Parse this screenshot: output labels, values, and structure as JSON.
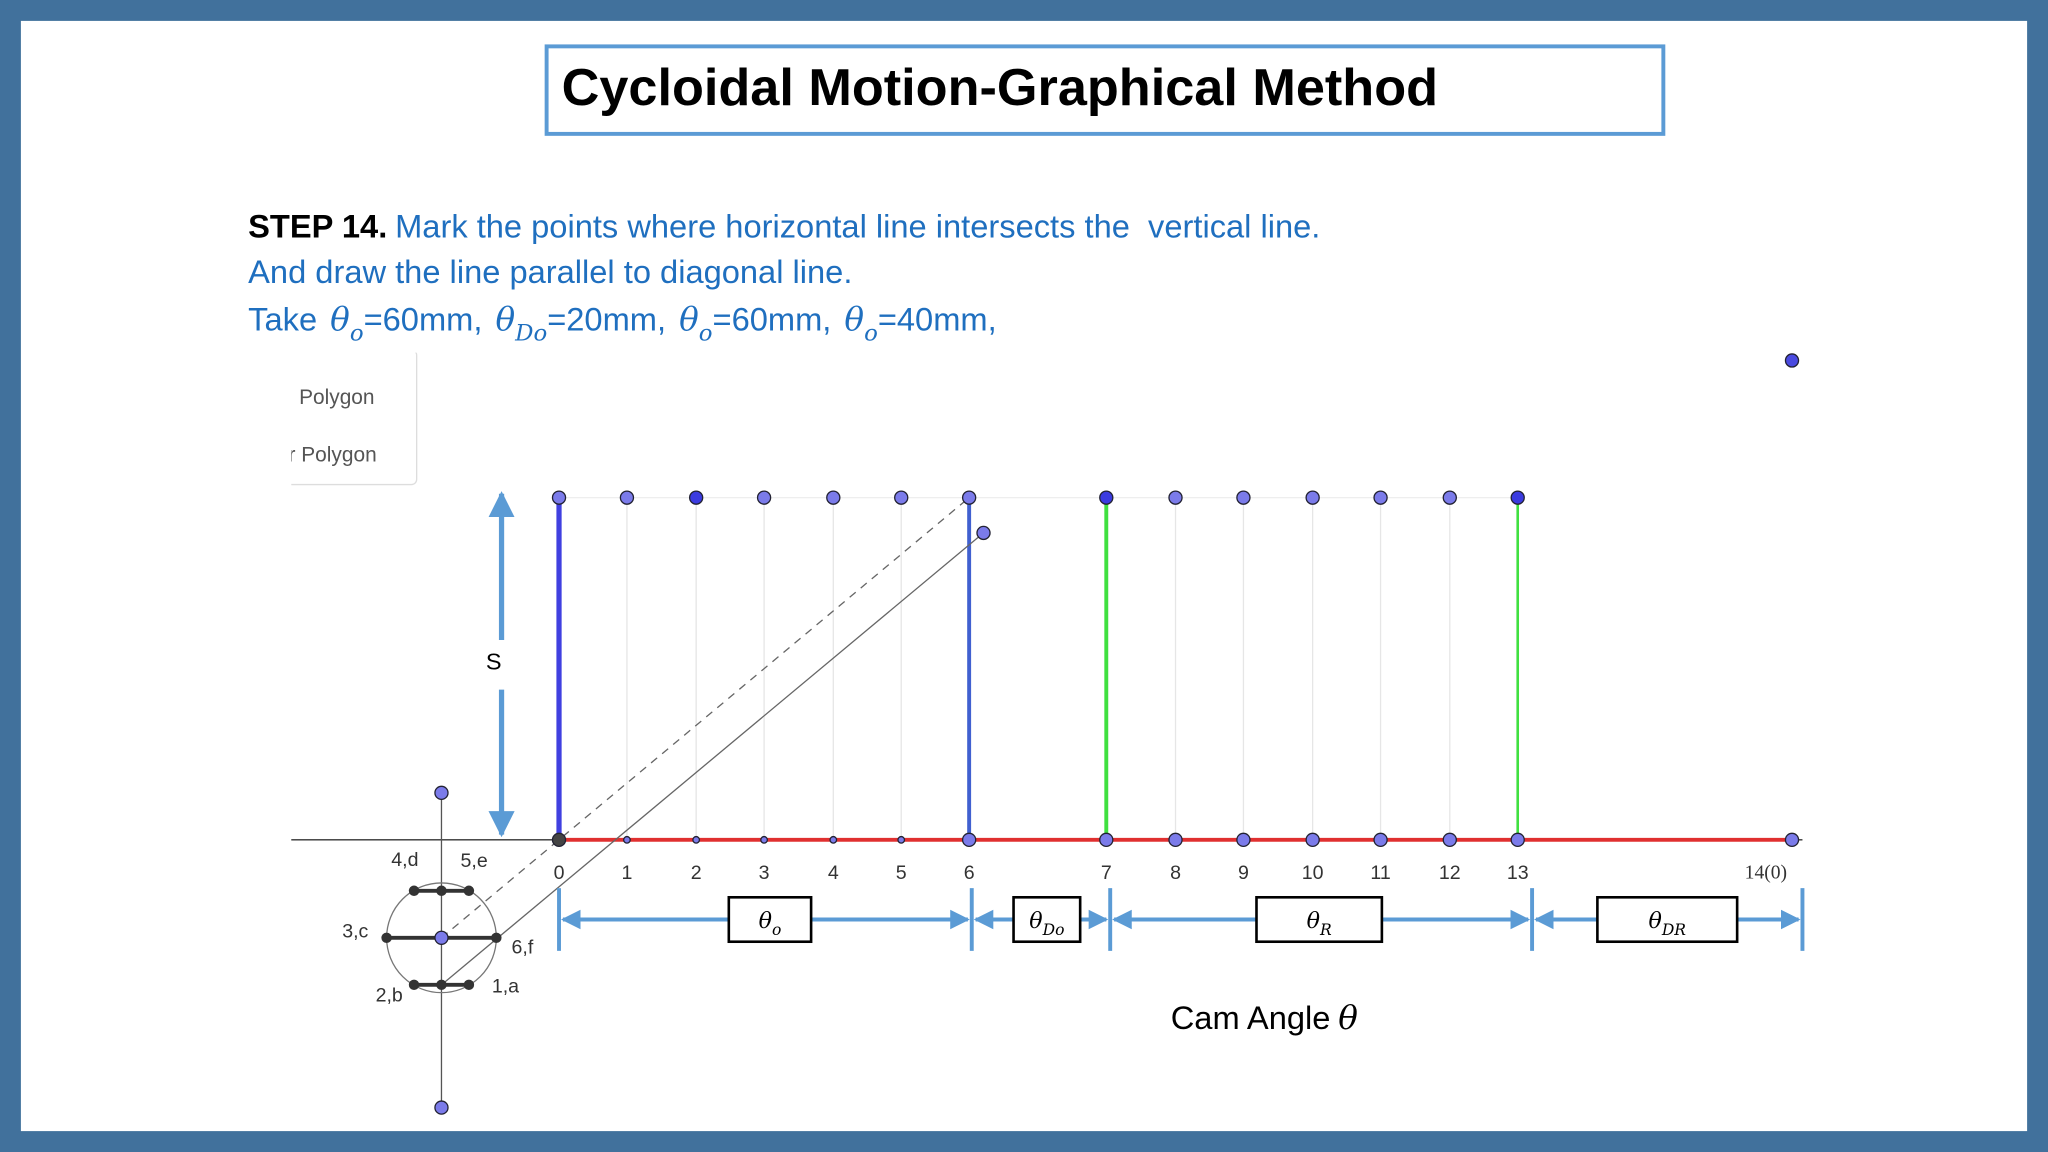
{
  "title": "Cycloidal Motion-Graphical Method",
  "step": {
    "label": "STEP 14.",
    "line1": "Mark the points where horizontal line intersects the  vertical line.",
    "line2": "And draw the line parallel to diagonal line.",
    "line3_lead": "Take",
    "line3_terms": [
      {
        "symbol": "θ",
        "sub": "o",
        "text": "=60mm,"
      },
      {
        "symbol": "θ",
        "sub": "Do",
        "text": "=20mm,"
      },
      {
        "symbol": "θ",
        "sub": "o",
        "text": "=60mm,"
      },
      {
        "symbol": "θ",
        "sub": "o",
        "text": "=40mm,"
      }
    ]
  },
  "menu": {
    "items": [
      "Polygon",
      "or Polygon"
    ]
  },
  "diagram": {
    "s_label": "S",
    "tick_labels": [
      "0",
      "1",
      "2",
      "3",
      "4",
      "5",
      "6",
      "7",
      "8",
      "9",
      "10",
      "11",
      "12",
      "13",
      "14(0)"
    ],
    "circle_labels": [
      "4,d",
      "5,e",
      "3,c",
      "6,f",
      "2,b",
      "1,a"
    ],
    "segments": [
      {
        "symbol": "θ",
        "sub": "o"
      },
      {
        "symbol": "θ",
        "sub": "Do"
      },
      {
        "symbol": "θ",
        "sub": "R"
      },
      {
        "symbol": "θ",
        "sub": "DR"
      }
    ],
    "axis_title": {
      "text": "Cam Angle",
      "symbol": "θ"
    }
  }
}
